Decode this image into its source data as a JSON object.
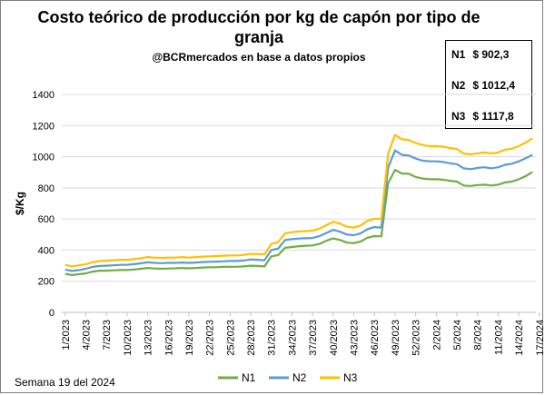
{
  "title": "Costo teórico de producción por kg de capón por tipo de granja",
  "subtitle": "@BCRmercados en base a datos propios",
  "footer": "Semana 19 del 2024",
  "value_box": [
    {
      "label": "N1",
      "value": "$ 902,3"
    },
    {
      "label": "N2",
      "value": "$ 1012,4"
    },
    {
      "label": "N3",
      "value": "$ 1117,8"
    }
  ],
  "chart_data": {
    "type": "line",
    "ylabel": "$/Kg",
    "xlabel": "",
    "ylim": [
      0,
      1400
    ],
    "yticks": [
      0,
      200,
      400,
      600,
      800,
      1000,
      1200,
      1400
    ],
    "grid": true,
    "legend_position": "bottom",
    "x_tick_labels": [
      "1/2023",
      "4/2023",
      "7/2023",
      "10/2023",
      "13/2023",
      "16/2023",
      "19/2023",
      "22/2023",
      "25/2023",
      "28/2023",
      "31/2023",
      "34/2023",
      "37/2023",
      "40/2023",
      "43/2023",
      "46/2023",
      "49/2023",
      "52/2023",
      "2/2024",
      "5/2024",
      "8/2024",
      "11/2024",
      "14/2024",
      "17/2024"
    ],
    "series": [
      {
        "name": "N1",
        "color": "#70ad47",
        "values": [
          248,
          240,
          245,
          250,
          262,
          268,
          268,
          270,
          272,
          272,
          275,
          280,
          285,
          282,
          280,
          282,
          283,
          285,
          283,
          285,
          288,
          290,
          290,
          292,
          293,
          293,
          295,
          300,
          298,
          295,
          360,
          368,
          415,
          420,
          425,
          428,
          430,
          440,
          460,
          475,
          465,
          448,
          445,
          455,
          480,
          490,
          488,
          830,
          915,
          892,
          890,
          870,
          860,
          855,
          855,
          852,
          845,
          840,
          815,
          812,
          818,
          820,
          815,
          820,
          835,
          840,
          855,
          875,
          902
        ]
      },
      {
        "name": "N2",
        "color": "#5b9bd5",
        "values": [
          275,
          266,
          272,
          280,
          292,
          298,
          300,
          302,
          305,
          305,
          310,
          315,
          322,
          318,
          316,
          318,
          318,
          320,
          318,
          320,
          323,
          325,
          326,
          328,
          330,
          330,
          333,
          340,
          338,
          335,
          400,
          410,
          465,
          470,
          474,
          476,
          478,
          490,
          510,
          530,
          518,
          500,
          496,
          508,
          535,
          548,
          545,
          930,
          1040,
          1012,
          1008,
          988,
          975,
          970,
          970,
          966,
          958,
          952,
          925,
          920,
          928,
          932,
          925,
          932,
          948,
          955,
          970,
          990,
          1012
        ]
      },
      {
        "name": "N3",
        "color": "#ffc000",
        "values": [
          305,
          296,
          302,
          310,
          322,
          330,
          332,
          335,
          338,
          338,
          342,
          348,
          355,
          352,
          350,
          352,
          352,
          355,
          352,
          355,
          358,
          360,
          362,
          364,
          366,
          366,
          369,
          376,
          374,
          372,
          440,
          452,
          508,
          515,
          520,
          522,
          525,
          538,
          560,
          582,
          570,
          550,
          545,
          558,
          588,
          602,
          600,
          1020,
          1140,
          1112,
          1108,
          1088,
          1075,
          1068,
          1068,
          1064,
          1056,
          1050,
          1020,
          1015,
          1022,
          1028,
          1020,
          1028,
          1045,
          1052,
          1068,
          1090,
          1118
        ]
      }
    ]
  }
}
